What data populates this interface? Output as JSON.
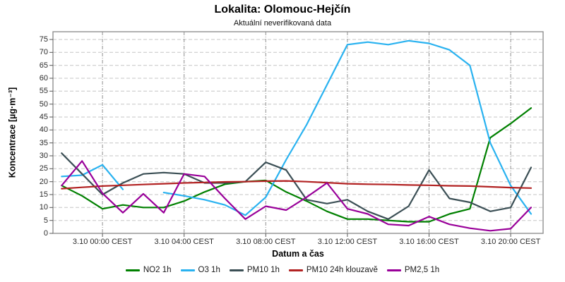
{
  "chart_data": {
    "type": "line",
    "title": "Lokalita: Olomouc-Hejčín",
    "subtitle": "Aktuální neverifikovaná data",
    "xlabel": "Datum a čas",
    "ylabel": "Koncentrace [µg·m⁻³]",
    "y_axis": {
      "min": 0,
      "max": 75,
      "step": 5
    },
    "grid": true,
    "legend_position": "bottom",
    "x_categories": [
      "2.10 22:00",
      "2.10 23:00",
      "3.10 00:00",
      "3.10 01:00",
      "3.10 02:00",
      "3.10 03:00",
      "3.10 04:00",
      "3.10 05:00",
      "3.10 06:00",
      "3.10 07:00",
      "3.10 08:00",
      "3.10 09:00",
      "3.10 10:00",
      "3.10 11:00",
      "3.10 12:00",
      "3.10 13:00",
      "3.10 14:00",
      "3.10 15:00",
      "3.10 16:00",
      "3.10 17:00",
      "3.10 18:00",
      "3.10 19:00",
      "3.10 20:00",
      "3.10 21:00"
    ],
    "x_ticks": [
      {
        "index": 2,
        "label": "3.10 00:00 CEST"
      },
      {
        "index": 6,
        "label": "3.10 04:00 CEST"
      },
      {
        "index": 10,
        "label": "3.10 08:00 CEST"
      },
      {
        "index": 14,
        "label": "3.10 12:00 CEST"
      },
      {
        "index": 18,
        "label": "3.10 16:00 CEST"
      },
      {
        "index": 22,
        "label": "3.10 20:00 CEST"
      }
    ],
    "series": [
      {
        "name": "NO2 1h",
        "color": "#008000",
        "values": [
          18.5,
          14.5,
          9.5,
          11,
          10,
          10,
          12.5,
          16,
          19,
          20,
          20.5,
          16,
          12.5,
          8.5,
          5.5,
          5.5,
          5,
          4.5,
          4.5,
          7.5,
          9.5,
          37,
          42.5,
          48.5
        ]
      },
      {
        "name": "O3 1h",
        "color": "#29B2F0",
        "values": [
          22,
          22.5,
          26.5,
          17,
          null,
          15.8,
          14.5,
          13,
          11,
          7,
          14,
          28.5,
          42,
          57.5,
          73,
          74,
          73,
          74.5,
          73.5,
          71,
          65,
          35,
          18.5,
          7.5
        ]
      },
      {
        "name": "PM10 1h",
        "color": "#3B4F55",
        "values": [
          31,
          23,
          15,
          19.5,
          23,
          23.5,
          23,
          19.5,
          19.5,
          20,
          27.5,
          24.5,
          13,
          11.5,
          13,
          8.5,
          5.5,
          10.5,
          24.5,
          13.5,
          12,
          8.5,
          10,
          25.5
        ]
      },
      {
        "name": "PM10 24h klouzavě",
        "color": "#B22222",
        "values": [
          17.3,
          17.8,
          18.3,
          18.6,
          18.9,
          19.2,
          19.5,
          19.7,
          19.9,
          20,
          20.2,
          20.3,
          20,
          19.6,
          19.2,
          19,
          18.9,
          18.7,
          18.6,
          18.4,
          18.3,
          18,
          17.7,
          17.5
        ]
      },
      {
        "name": "PM2,5 1h",
        "color": "#990099",
        "values": [
          18.5,
          28,
          15.5,
          8,
          15.3,
          8,
          23,
          22,
          13.5,
          5.5,
          10.5,
          9,
          14,
          19.5,
          9.5,
          7.5,
          3.5,
          3,
          6.5,
          3.5,
          2,
          1,
          1.8,
          10
        ]
      }
    ]
  }
}
